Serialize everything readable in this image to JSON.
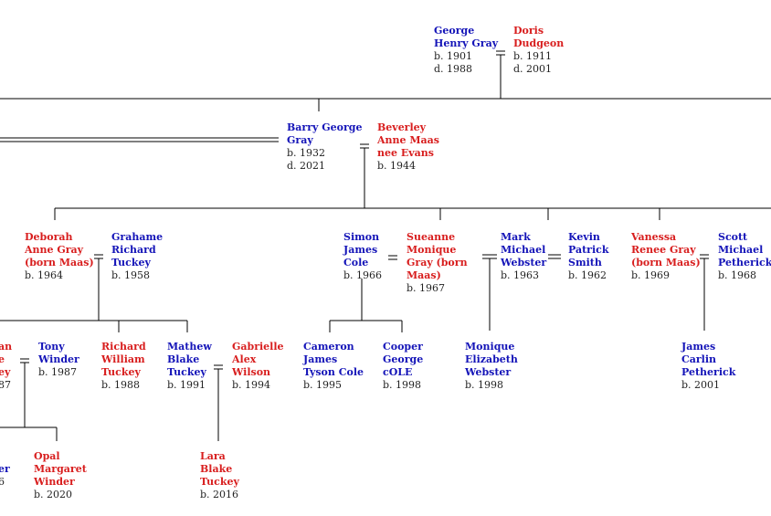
{
  "colors": {
    "male": "#1414b8",
    "female": "#d81e1e",
    "line": "#000000",
    "date": "#222222"
  },
  "people": {
    "george": {
      "name": [
        "George",
        "Henry Gray"
      ],
      "life": [
        "b. 1901",
        "d. 1988"
      ]
    },
    "doris": {
      "name": [
        "Doris",
        "Dudgeon"
      ],
      "life": [
        "b. 1911",
        "d. 2001"
      ]
    },
    "barry": {
      "name": [
        "Barry George",
        "Gray"
      ],
      "life": [
        "b. 1932",
        "d. 2021"
      ]
    },
    "beverley": {
      "name": [
        "Beverley",
        "Anne Maas",
        "nee Evans"
      ],
      "life": [
        "b. 1944"
      ]
    },
    "deborah": {
      "name": [
        "Deborah",
        "Anne Gray",
        "(born Maas)"
      ],
      "life": [
        "b. 1964"
      ]
    },
    "grahame": {
      "name": [
        "Grahame",
        "Richard",
        "Tuckey"
      ],
      "life": [
        "b. 1958"
      ]
    },
    "simon": {
      "name": [
        "Simon",
        "James",
        "Cole"
      ],
      "life": [
        "b. 1966"
      ]
    },
    "sueanne": {
      "name": [
        "Sueanne",
        "Monique",
        "Gray (born",
        "Maas)"
      ],
      "life": [
        "b. 1967"
      ]
    },
    "mark": {
      "name": [
        "Mark",
        "Michael",
        "Webster"
      ],
      "life": [
        "b. 1963"
      ]
    },
    "kevin": {
      "name": [
        "Kevin",
        "Patrick",
        "Smith"
      ],
      "life": [
        "b. 1962"
      ]
    },
    "vanessa": {
      "name": [
        "Vanessa",
        "Renee Gray",
        "(born Maas)"
      ],
      "life": [
        "b. 1969"
      ]
    },
    "scott": {
      "name": [
        "Scott",
        "Michael",
        "Petherick"
      ],
      "life": [
        "b. 1968"
      ]
    },
    "cutoff_left": {
      "name": [
        "an",
        "e",
        "ey"
      ],
      "life": [
        "87"
      ]
    },
    "tony": {
      "name": [
        "Tony",
        "Winder"
      ],
      "life": [
        "b. 1987"
      ]
    },
    "richard": {
      "name": [
        "Richard",
        "William",
        "Tuckey"
      ],
      "life": [
        "b. 1988"
      ]
    },
    "mathew": {
      "name": [
        "Mathew",
        "Blake",
        "Tuckey"
      ],
      "life": [
        "b. 1991"
      ]
    },
    "gabrielle": {
      "name": [
        "Gabrielle",
        "Alex",
        "Wilson"
      ],
      "life": [
        "b. 1994"
      ]
    },
    "cameron": {
      "name": [
        "Cameron",
        "James",
        "Tyson Cole"
      ],
      "life": [
        "b. 1995"
      ]
    },
    "cooper": {
      "name": [
        "Cooper",
        "George",
        "cOLE"
      ],
      "life": [
        "b. 1998"
      ]
    },
    "monique": {
      "name": [
        "Monique",
        "Elizabeth",
        "Webster"
      ],
      "life": [
        "b. 1998"
      ]
    },
    "james": {
      "name": [
        "James",
        "Carlin",
        "Petherick"
      ],
      "life": [
        "b. 2001"
      ]
    },
    "cutoff_bottom": {
      "name": [
        "",
        "er"
      ],
      "life": [
        "6"
      ]
    },
    "opal": {
      "name": [
        "Opal",
        "Margaret",
        "Winder"
      ],
      "life": [
        "b. 2020"
      ]
    },
    "lara": {
      "name": [
        "Lara",
        "Blake",
        "Tuckey"
      ],
      "life": [
        "b. 2016"
      ]
    }
  }
}
